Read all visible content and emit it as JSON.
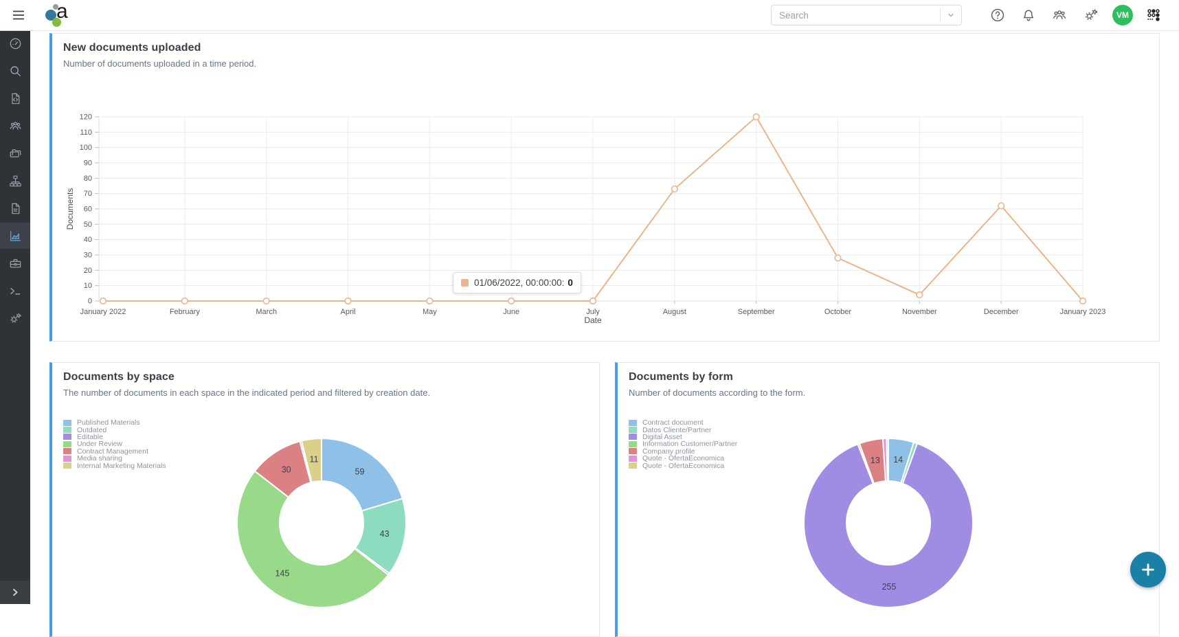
{
  "navbar": {
    "brand_letter": "a",
    "search": {
      "placeholder": "Search",
      "dropdown_icon": "chevron-down-icon"
    },
    "action_icons": [
      "help-icon",
      "notifications-bell-icon",
      "users-group-icon",
      "settings-gears-icon"
    ],
    "avatar_initials": "VM",
    "apps_icon": "apps-grid-icon",
    "menu_icon": "hamburger-icon",
    "avatar_color": "#2ebd5f"
  },
  "sidebar": {
    "items": [
      {
        "icon": "dashboard-icon"
      },
      {
        "icon": "search-icon"
      },
      {
        "icon": "file-code-icon"
      },
      {
        "icon": "users-group-icon"
      },
      {
        "icon": "folders-icon"
      },
      {
        "icon": "sitemap-icon"
      },
      {
        "icon": "document-icon"
      },
      {
        "icon": "analytics-icon"
      },
      {
        "icon": "briefcase-icon"
      },
      {
        "icon": "terminal-icon"
      },
      {
        "icon": "settings-gears-icon"
      }
    ],
    "active_index": 7,
    "expand_icon": "chevron-right-icon"
  },
  "fab": {
    "icon": "plus-icon",
    "color": "#1b80a5"
  },
  "colors": {
    "card_accent": "#4a9ce2",
    "active_icon": "#4fa8e1",
    "sidebar_bg": "#2f3337"
  },
  "chart_data": [
    {
      "type": "line",
      "title": "New documents uploaded",
      "subtitle": "Number of documents uploaded in a time period.",
      "categories": [
        "January 2022",
        "February",
        "March",
        "April",
        "May",
        "June",
        "July",
        "August",
        "September",
        "October",
        "November",
        "December",
        "January 2023"
      ],
      "values": [
        0,
        0,
        0,
        0,
        0,
        0,
        0,
        73,
        120,
        28,
        4,
        62,
        0
      ],
      "xlabel": "Date",
      "ylabel": "Documents",
      "ylim": [
        0,
        120
      ],
      "ytick_step": 10,
      "grid": true,
      "line_color": "#eab48c",
      "tooltip": {
        "swatch_color": "#eab48c",
        "label": "01/06/2022, 00:00:00:",
        "value": "0"
      }
    },
    {
      "type": "pie",
      "donut": true,
      "title": "Documents by space",
      "subtitle": "The number of documents in each space in the indicated period and filtered by creation date.",
      "legend_position": "top-left",
      "label_min_value": 10,
      "slices": [
        {
          "label": "Published Materials",
          "value": 59,
          "color": "#8fc0e7"
        },
        {
          "label": "Outdated",
          "value": 43,
          "color": "#8edcc0"
        },
        {
          "label": "Editable",
          "value": 1,
          "color": "#a18ce3"
        },
        {
          "label": "Under Review",
          "value": 145,
          "color": "#99da8a"
        },
        {
          "label": "Contract Management",
          "value": 30,
          "color": "#db8184"
        },
        {
          "label": "Media sharing",
          "value": 1,
          "color": "#e291da"
        },
        {
          "label": "Internal Marketing Materials",
          "value": 11,
          "color": "#dbd089"
        }
      ]
    },
    {
      "type": "pie",
      "donut": true,
      "title": "Documents by form",
      "subtitle": "Number of documents according to the form.",
      "legend_position": "top-left",
      "label_min_value": 10,
      "slices": [
        {
          "label": "Contract document",
          "value": 14,
          "color": "#8fc0e7"
        },
        {
          "label": "Datos Cliente/Partner",
          "value": 2,
          "color": "#8edcc0"
        },
        {
          "label": "Digital Asset",
          "value": 255,
          "color": "#a18ce3"
        },
        {
          "label": "Information Customer/Partner",
          "value": 1,
          "color": "#99da8a"
        },
        {
          "label": "Company profile",
          "value": 13,
          "color": "#db8184"
        },
        {
          "label": "Quote - OfertaEconomica",
          "value": 2,
          "color": "#e291da"
        },
        {
          "label": "Quote - OfertaEconomica",
          "value": 1,
          "color": "#dbd089"
        }
      ]
    }
  ]
}
